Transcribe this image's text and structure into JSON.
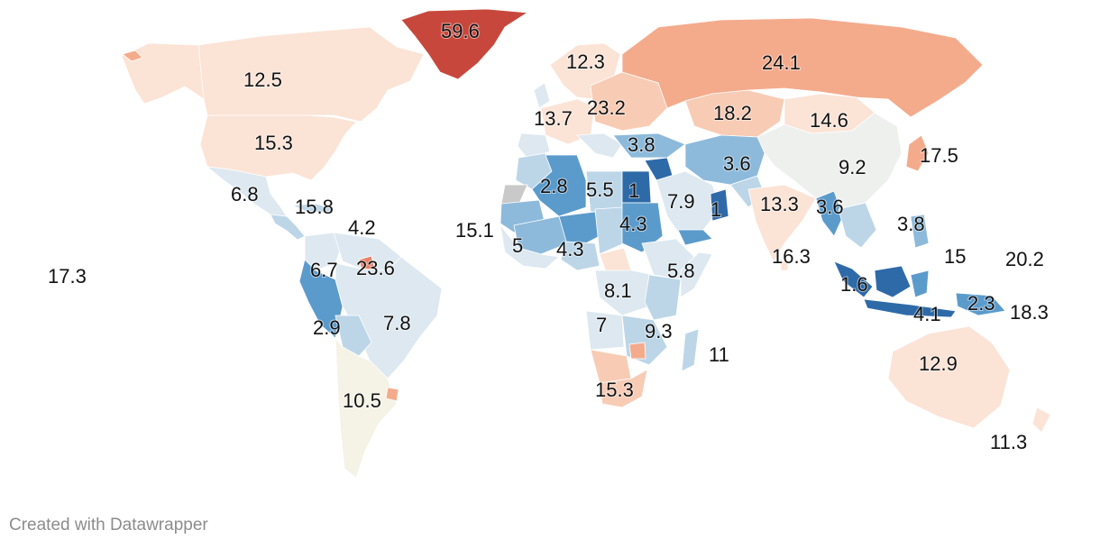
{
  "credit": "Created with Datawrapper",
  "colors": {
    "deep_red": "#c8473c",
    "red": "#e8826a",
    "salmon": "#f4ab8c",
    "peach": "#f8cbb4",
    "light_peach": "#fbe3d6",
    "neutral": "#eef0ee",
    "cream": "#f5f2e6",
    "pale_blue": "#dde8f0",
    "light_blue": "#bcd6e8",
    "mid_blue": "#8dbadb",
    "blue": "#5b9bcc",
    "deep_blue": "#2e6aa8"
  },
  "labels": [
    {
      "name": "greenland",
      "value": "59.6"
    },
    {
      "name": "canada",
      "value": "12.5"
    },
    {
      "name": "usa",
      "value": "15.3"
    },
    {
      "name": "mexico",
      "value": "6.8"
    },
    {
      "name": "caribbean",
      "value": "15.8"
    },
    {
      "name": "lesser-antilles",
      "value": "4.2"
    },
    {
      "name": "pacific-islands-east",
      "value": "17.3"
    },
    {
      "name": "colombia",
      "value": "6.7"
    },
    {
      "name": "guyana",
      "value": "23.6"
    },
    {
      "name": "peru",
      "value": "2.9"
    },
    {
      "name": "brazil",
      "value": "7.8"
    },
    {
      "name": "argentina",
      "value": "10.5"
    },
    {
      "name": "scandinavia",
      "value": "12.3"
    },
    {
      "name": "western-europe",
      "value": "13.7"
    },
    {
      "name": "eastern-europe",
      "value": "23.2"
    },
    {
      "name": "russia",
      "value": "24.1"
    },
    {
      "name": "kazakhstan",
      "value": "18.2"
    },
    {
      "name": "mongolia",
      "value": "14.6"
    },
    {
      "name": "turkey",
      "value": "3.8"
    },
    {
      "name": "iran",
      "value": "3.6"
    },
    {
      "name": "china",
      "value": "9.2"
    },
    {
      "name": "japan",
      "value": "17.5"
    },
    {
      "name": "algeria",
      "value": "2.8"
    },
    {
      "name": "libya",
      "value": "5.5"
    },
    {
      "name": "egypt",
      "value": "1"
    },
    {
      "name": "saudi-arabia",
      "value": "7.9"
    },
    {
      "name": "oman",
      "value": "1"
    },
    {
      "name": "india",
      "value": "13.3"
    },
    {
      "name": "myanmar",
      "value": "3.6"
    },
    {
      "name": "west-africa-coast",
      "value": "15.1"
    },
    {
      "name": "mali",
      "value": "5"
    },
    {
      "name": "niger",
      "value": "4.3"
    },
    {
      "name": "sudan",
      "value": "4.3"
    },
    {
      "name": "sri-lanka",
      "value": "16.3"
    },
    {
      "name": "philippines",
      "value": "3.8"
    },
    {
      "name": "micronesia",
      "value": "15"
    },
    {
      "name": "pacific-islands-west",
      "value": "20.2"
    },
    {
      "name": "ethiopia",
      "value": "5.8"
    },
    {
      "name": "drc",
      "value": "8.1"
    },
    {
      "name": "malaysia",
      "value": "1.6"
    },
    {
      "name": "png",
      "value": "2.3"
    },
    {
      "name": "solomon-islands",
      "value": "18.3"
    },
    {
      "name": "indonesia",
      "value": "4.1"
    },
    {
      "name": "angola",
      "value": "7"
    },
    {
      "name": "mozambique",
      "value": "9.3"
    },
    {
      "name": "madagascar",
      "value": "11"
    },
    {
      "name": "australia",
      "value": "12.9"
    },
    {
      "name": "south-africa",
      "value": "15.3"
    },
    {
      "name": "new-zealand",
      "value": "11.3"
    }
  ]
}
